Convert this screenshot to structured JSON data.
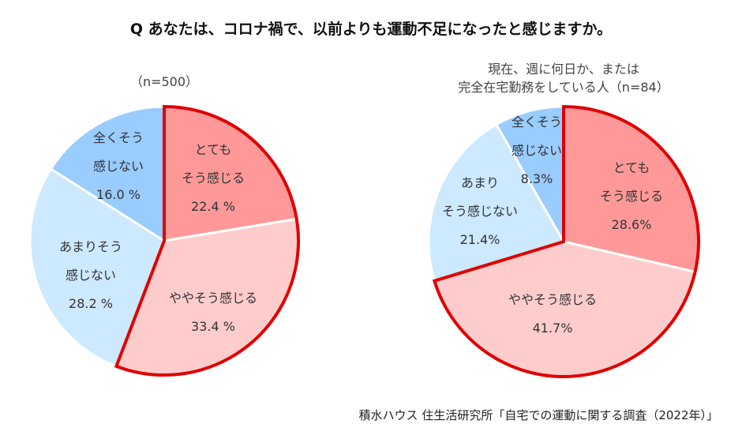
{
  "title": "Q あなたは、コロナ禍で、以前よりも運動不足になったと感じますか。",
  "source": "積水ハウス 住生活研究所「自宅での運動に関する調査（2022年）」",
  "colors": {
    "very": "#ff9999",
    "somewhat": "#ffcccc",
    "notmuch": "#cce9ff",
    "notatall": "#99ccff",
    "highlight": "#e00000"
  },
  "chart_data": [
    {
      "type": "pie",
      "subtitle": "（n=500）",
      "start": "top",
      "direction": "clockwise",
      "slices": [
        {
          "key": "very",
          "lines": [
            "とても",
            "そう感じる",
            "22.4 %"
          ],
          "value": 22.4
        },
        {
          "key": "somewhat",
          "lines": [
            "ややそう感じる",
            "33.4 %"
          ],
          "value": 33.4
        },
        {
          "key": "notmuch",
          "lines": [
            "あまりそう",
            "感じない",
            "28.2 %"
          ],
          "value": 28.2
        },
        {
          "key": "notatall",
          "lines": [
            "全くそう",
            "感じない",
            "16.0 %"
          ],
          "value": 16.0
        }
      ],
      "highlighted": [
        "very",
        "somewhat"
      ]
    },
    {
      "type": "pie",
      "subtitle_lines": [
        "現在、週に何日か、または",
        "完全在宅勤務をしている人（n=84）"
      ],
      "start": "top",
      "direction": "clockwise",
      "slices": [
        {
          "key": "very",
          "lines": [
            "とても",
            "そう感じる",
            "28.6%"
          ],
          "value": 28.6
        },
        {
          "key": "somewhat",
          "lines": [
            "ややそう感じる",
            "41.7%"
          ],
          "value": 41.7
        },
        {
          "key": "notmuch",
          "lines": [
            "あまり",
            "そう感じない",
            "21.4%"
          ],
          "value": 21.4
        },
        {
          "key": "notatall",
          "lines": [
            "全くそう",
            "感じない",
            "8.3%"
          ],
          "value": 8.3
        }
      ],
      "highlighted": [
        "very",
        "somewhat"
      ]
    }
  ]
}
